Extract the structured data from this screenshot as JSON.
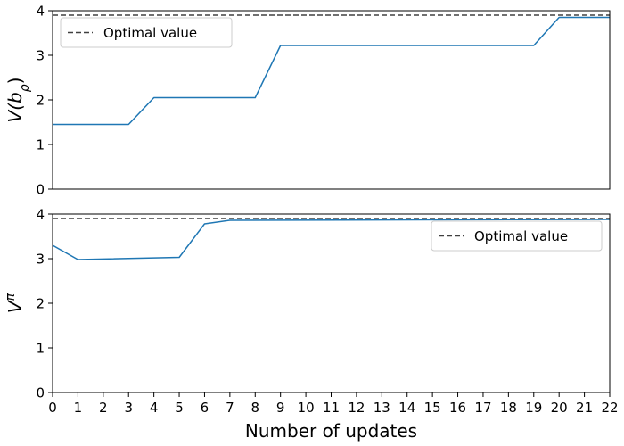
{
  "chart_data": [
    {
      "type": "line",
      "ylabel_base": "V(b",
      "ylabel_sub": "ρ",
      "ylabel_close": ")",
      "ylim": [
        0,
        4
      ],
      "xlim": [
        0,
        22
      ],
      "yticks": [
        0,
        1,
        2,
        3,
        4
      ],
      "xticks_shown": false,
      "grid": false,
      "legend": {
        "position": "top-left",
        "entries": [
          "Optimal value"
        ]
      },
      "reference_line": {
        "label": "Optimal value",
        "y": 3.9,
        "style": "dashed",
        "color": "#404040"
      },
      "series": [
        {
          "color": "#1f77b4",
          "x": [
            0,
            3,
            4,
            8,
            9,
            19,
            20,
            22
          ],
          "y": [
            1.45,
            1.45,
            2.05,
            2.05,
            3.22,
            3.22,
            3.85,
            3.85
          ]
        }
      ]
    },
    {
      "type": "line",
      "ylabel_base": "V",
      "ylabel_sup": "π",
      "xlabel": "Number of updates",
      "ylim": [
        0,
        4
      ],
      "xlim": [
        0,
        22
      ],
      "yticks": [
        0,
        1,
        2,
        3,
        4
      ],
      "xticks": [
        0,
        1,
        2,
        3,
        4,
        5,
        6,
        7,
        8,
        9,
        10,
        11,
        12,
        13,
        14,
        15,
        16,
        17,
        18,
        19,
        20,
        21,
        22
      ],
      "grid": false,
      "legend": {
        "position": "top-right",
        "entries": [
          "Optimal value"
        ]
      },
      "reference_line": {
        "label": "Optimal value",
        "y": 3.9,
        "style": "dashed",
        "color": "#404040"
      },
      "series": [
        {
          "color": "#1f77b4",
          "x": [
            0,
            1,
            5,
            6,
            7,
            22
          ],
          "y": [
            3.3,
            2.98,
            3.03,
            3.78,
            3.86,
            3.88
          ]
        }
      ]
    }
  ]
}
